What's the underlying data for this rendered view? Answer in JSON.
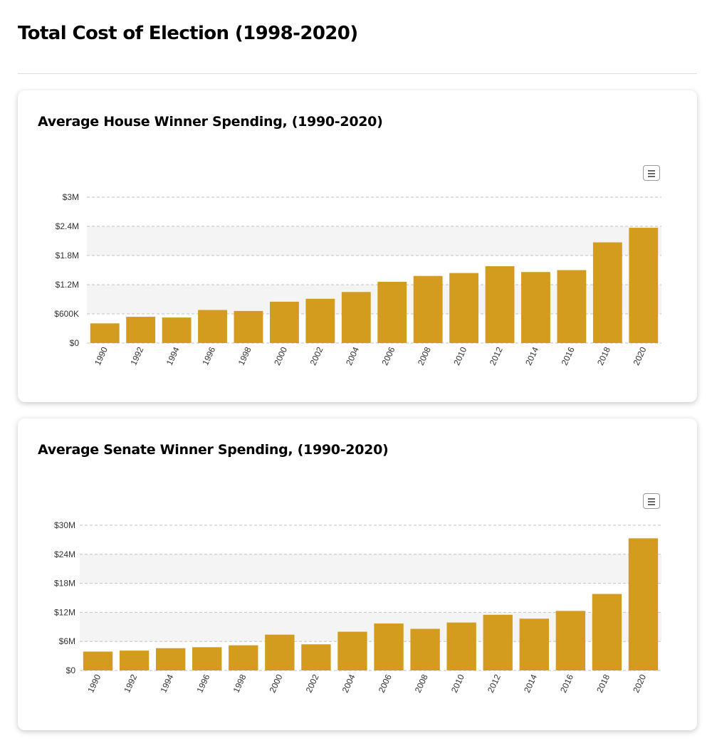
{
  "page": {
    "title": "Total Cost of Election (1998-2020)"
  },
  "colors": {
    "bar": "#D49C1E",
    "band": "#f4f4f4",
    "grid": "#c2c2c2"
  },
  "icons": {
    "menu": "hamburger-menu-icon"
  },
  "chart_data": [
    {
      "type": "bar",
      "title": "Average House Winner Spending, (1990-2020)",
      "categories": [
        "1990",
        "1992",
        "1994",
        "1996",
        "1998",
        "2000",
        "2002",
        "2004",
        "2006",
        "2008",
        "2010",
        "2012",
        "2014",
        "2016",
        "2018",
        "2020"
      ],
      "values": [
        405000,
        540000,
        525000,
        680000,
        660000,
        850000,
        910000,
        1050000,
        1260000,
        1380000,
        1440000,
        1580000,
        1460000,
        1500000,
        2070000,
        2370000
      ],
      "yticks": [
        0,
        600000,
        1200000,
        1800000,
        2400000,
        3000000
      ],
      "ytick_labels": [
        "$0",
        "$600K",
        "$1.2M",
        "$1.8M",
        "$2.4M",
        "$3M"
      ],
      "ylim": [
        0,
        3000000
      ],
      "xlabel": "",
      "ylabel": "",
      "grid": true,
      "legend": false
    },
    {
      "type": "bar",
      "title": "Average Senate Winner Spending, (1990-2020)",
      "categories": [
        "1990",
        "1992",
        "1994",
        "1996",
        "1998",
        "2000",
        "2002",
        "2004",
        "2006",
        "2008",
        "2010",
        "2012",
        "2014",
        "2016",
        "2018",
        "2020"
      ],
      "values": [
        3900000,
        4100000,
        4600000,
        4800000,
        5200000,
        7400000,
        5400000,
        8000000,
        9700000,
        8600000,
        9900000,
        11500000,
        10700000,
        12300000,
        15800000,
        27300000
      ],
      "yticks": [
        0,
        6000000,
        12000000,
        18000000,
        24000000,
        30000000
      ],
      "ytick_labels": [
        "$0",
        "$6M",
        "$12M",
        "$18M",
        "$24M",
        "$30M"
      ],
      "ylim": [
        0,
        30000000
      ],
      "xlabel": "",
      "ylabel": "",
      "grid": true,
      "legend": false
    }
  ]
}
